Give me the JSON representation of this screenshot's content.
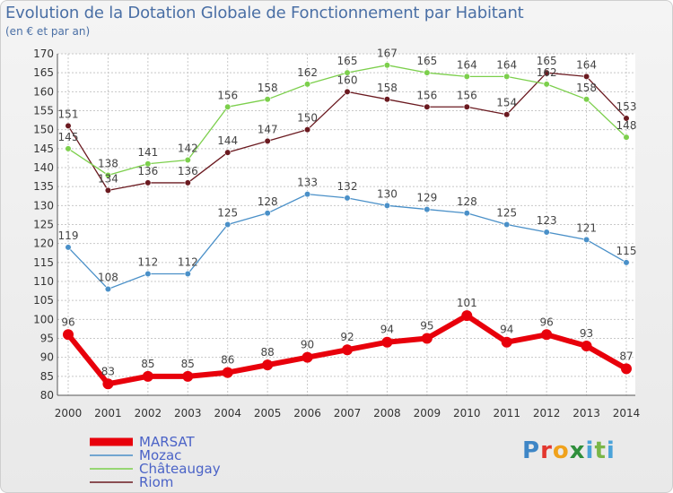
{
  "title": "Evolution de la Dotation Globale de Fonctionnement par Habitant",
  "subtitle": "(en € et par an)",
  "logo_text": "Proxiti",
  "colors": {
    "marsat": "#e8000b",
    "mozac": "#4a90c8",
    "chateaugay": "#7ccf4c",
    "riom": "#6b1a20",
    "grid": "#c8c8c8",
    "axis": "#333333"
  },
  "chart_data": {
    "type": "line",
    "title": "Evolution de la Dotation Globale de Fonctionnement par Habitant",
    "subtitle": "(en € et par an)",
    "x": [
      "2000",
      "2001",
      "2002",
      "2003",
      "2004",
      "2005",
      "2006",
      "2007",
      "2008",
      "2009",
      "2010",
      "2011",
      "2012",
      "2013",
      "2014"
    ],
    "ylim": [
      80,
      170
    ],
    "yticks": [
      80,
      85,
      90,
      95,
      100,
      105,
      110,
      115,
      120,
      125,
      130,
      135,
      140,
      145,
      150,
      155,
      160,
      165,
      170
    ],
    "grid": true,
    "legend_position": "bottom-left",
    "series": [
      {
        "name": "MARSAT",
        "color": "#e8000b",
        "values": [
          96,
          83,
          85,
          85,
          86,
          88,
          90,
          92,
          94,
          95,
          101,
          94,
          96,
          93,
          87
        ]
      },
      {
        "name": "Mozac",
        "color": "#4a90c8",
        "values": [
          119,
          108,
          112,
          112,
          125,
          128,
          133,
          132,
          130,
          129,
          128,
          125,
          123,
          121,
          115
        ]
      },
      {
        "name": "Châteaugay",
        "color": "#7ccf4c",
        "values": [
          145,
          138,
          141,
          142,
          156,
          158,
          162,
          165,
          167,
          165,
          164,
          164,
          162,
          158,
          148
        ]
      },
      {
        "name": "Riom",
        "color": "#6b1a20",
        "values": [
          151,
          134,
          136,
          136,
          144,
          147,
          150,
          160,
          158,
          156,
          156,
          154,
          165,
          164,
          153
        ]
      }
    ]
  }
}
